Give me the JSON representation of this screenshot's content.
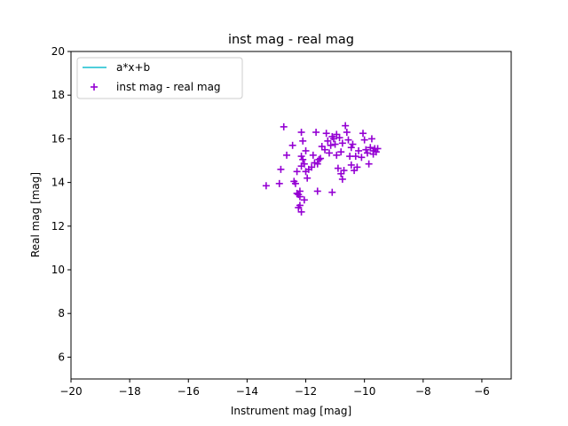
{
  "chart_data": {
    "type": "scatter",
    "title": "inst mag - real mag",
    "xlabel": "Instrument mag [mag]",
    "ylabel": "Real mag [mag]",
    "xlim": [
      -20,
      -5
    ],
    "ylim": [
      5,
      20
    ],
    "xticks": [
      -20,
      -18,
      -16,
      -14,
      -12,
      -10,
      -8,
      -6
    ],
    "yticks": [
      6,
      8,
      10,
      12,
      14,
      16,
      18,
      20
    ],
    "grid": false,
    "legend_position": "top-left",
    "series": [
      {
        "name": "a*x+b",
        "kind": "line",
        "color": "#17becf",
        "points": []
      },
      {
        "name": "inst mag - real mag",
        "kind": "scatter",
        "marker": "plus",
        "color": "#9400d3",
        "points": [
          [
            -13.35,
            13.85
          ],
          [
            -12.9,
            13.95
          ],
          [
            -12.85,
            14.6
          ],
          [
            -12.75,
            16.55
          ],
          [
            -12.65,
            15.25
          ],
          [
            -12.45,
            15.7
          ],
          [
            -12.4,
            14.05
          ],
          [
            -12.35,
            13.95
          ],
          [
            -12.3,
            14.5
          ],
          [
            -12.3,
            13.5
          ],
          [
            -12.25,
            13.45
          ],
          [
            -12.25,
            12.85
          ],
          [
            -12.2,
            13.6
          ],
          [
            -12.2,
            13.35
          ],
          [
            -12.2,
            12.95
          ],
          [
            -12.15,
            16.3
          ],
          [
            -12.15,
            15.2
          ],
          [
            -12.15,
            14.75
          ],
          [
            -12.15,
            12.65
          ],
          [
            -12.1,
            15.9
          ],
          [
            -12.1,
            15.05
          ],
          [
            -12.05,
            14.85
          ],
          [
            -12.05,
            13.2
          ],
          [
            -12.0,
            15.45
          ],
          [
            -12.0,
            14.5
          ],
          [
            -11.95,
            14.2
          ],
          [
            -11.9,
            14.6
          ],
          [
            -11.8,
            14.7
          ],
          [
            -11.75,
            15.25
          ],
          [
            -11.7,
            14.9
          ],
          [
            -11.65,
            16.3
          ],
          [
            -11.6,
            14.85
          ],
          [
            -11.6,
            13.6
          ],
          [
            -11.55,
            15.05
          ],
          [
            -11.5,
            15.1
          ],
          [
            -11.45,
            15.65
          ],
          [
            -11.35,
            15.5
          ],
          [
            -11.3,
            16.25
          ],
          [
            -11.25,
            15.9
          ],
          [
            -11.2,
            15.35
          ],
          [
            -11.15,
            15.7
          ],
          [
            -11.1,
            16.1
          ],
          [
            -11.1,
            13.55
          ],
          [
            -11.05,
            16.0
          ],
          [
            -11.0,
            15.75
          ],
          [
            -10.95,
            16.2
          ],
          [
            -10.95,
            15.25
          ],
          [
            -10.9,
            14.65
          ],
          [
            -10.85,
            16.05
          ],
          [
            -10.8,
            15.4
          ],
          [
            -10.8,
            14.4
          ],
          [
            -10.75,
            14.15
          ],
          [
            -10.75,
            15.8
          ],
          [
            -10.7,
            14.55
          ],
          [
            -10.65,
            16.6
          ],
          [
            -10.6,
            16.3
          ],
          [
            -10.55,
            15.95
          ],
          [
            -10.5,
            15.2
          ],
          [
            -10.45,
            15.6
          ],
          [
            -10.45,
            14.8
          ],
          [
            -10.4,
            15.75
          ],
          [
            -10.35,
            14.55
          ],
          [
            -10.3,
            15.2
          ],
          [
            -10.25,
            14.7
          ],
          [
            -10.2,
            15.45
          ],
          [
            -10.1,
            15.15
          ],
          [
            -10.05,
            16.25
          ],
          [
            -10.0,
            15.95
          ],
          [
            -9.95,
            15.5
          ],
          [
            -9.9,
            15.35
          ],
          [
            -9.85,
            14.85
          ],
          [
            -9.8,
            15.6
          ],
          [
            -9.75,
            16.0
          ],
          [
            -9.7,
            15.3
          ],
          [
            -9.65,
            15.55
          ],
          [
            -9.6,
            15.4
          ],
          [
            -9.55,
            15.55
          ],
          [
            -9.7,
            15.45
          ]
        ]
      }
    ]
  }
}
